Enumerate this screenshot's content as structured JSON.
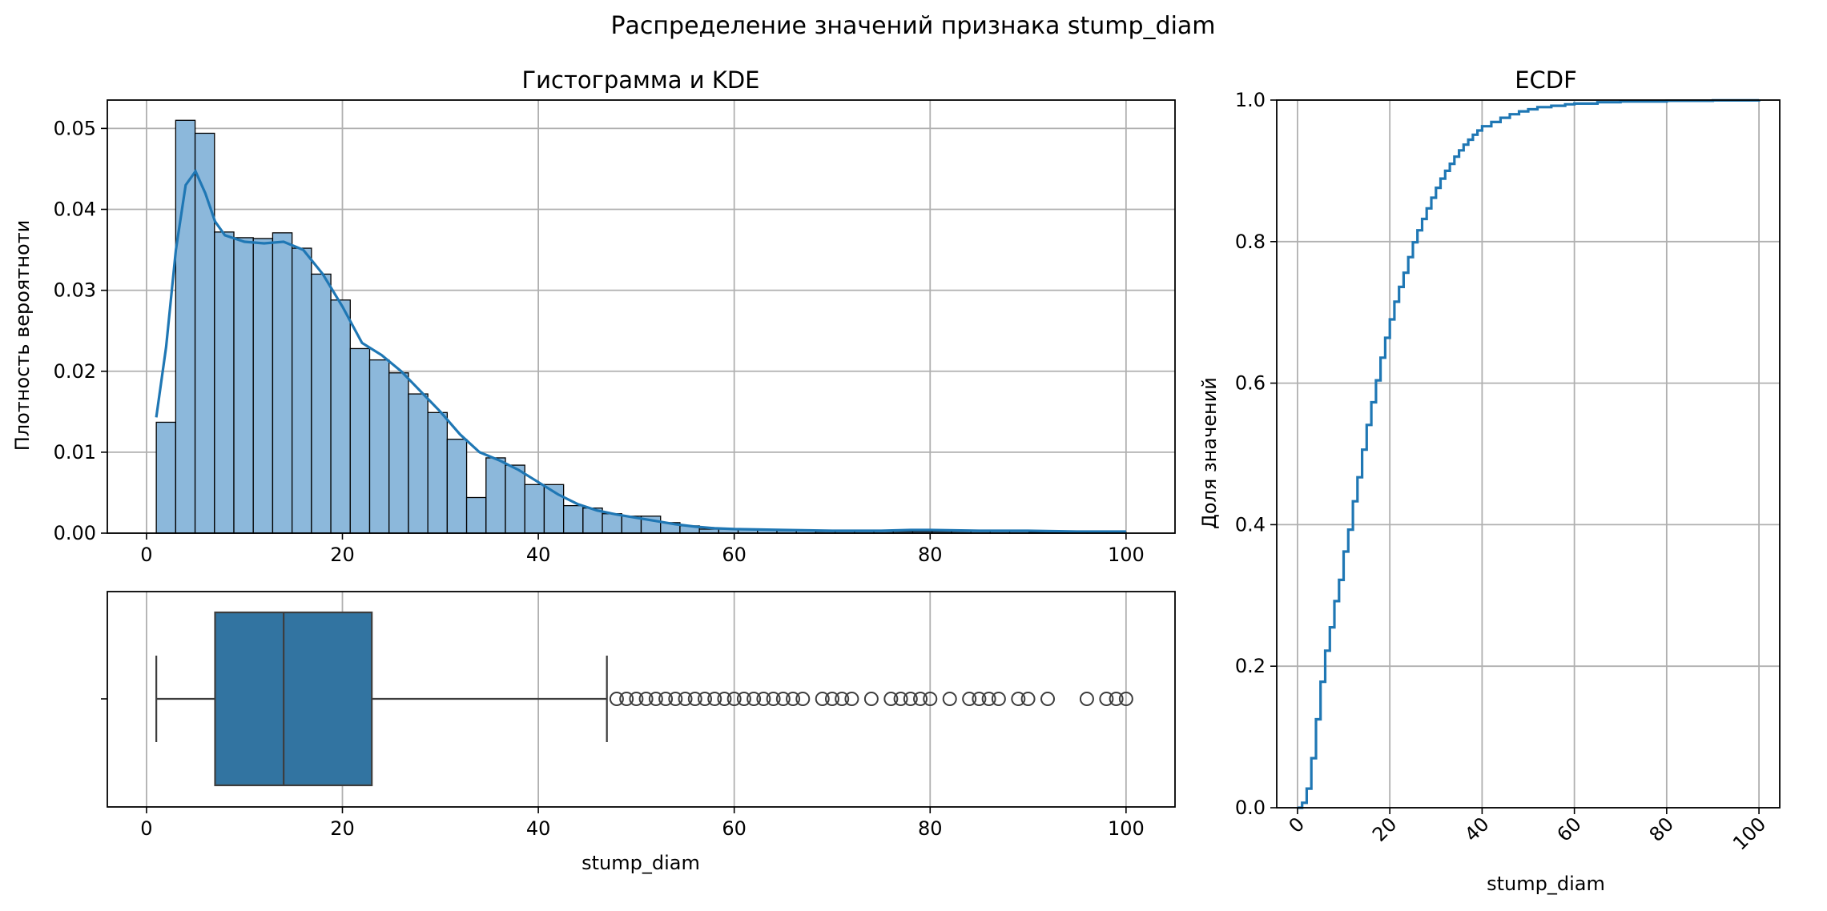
{
  "figure": {
    "title": "Распределение значений признака stump_diam",
    "accent_color": "#1f77b4",
    "box_color": "#3274a1",
    "hist_fill": "#8cb8db",
    "grid_color": "#b0b0b0"
  },
  "chart_data": [
    {
      "type": "bar",
      "subtype": "histogram_with_kde",
      "title": "Гистограмма и KDE",
      "xlabel": "",
      "ylabel": "Плотность вероятноти",
      "xlim": [
        -4,
        105
      ],
      "ylim": [
        0,
        0.0535
      ],
      "xticks": [
        0,
        20,
        40,
        60,
        80,
        100
      ],
      "yticks": [
        0.0,
        0.01,
        0.02,
        0.03,
        0.04,
        0.05
      ],
      "ytick_labels": [
        "0.00",
        "0.01",
        "0.02",
        "0.03",
        "0.04",
        "0.05"
      ],
      "grid": true,
      "bins": {
        "start": 1,
        "width": 1.98,
        "values": [
          0.0137,
          0.051,
          0.0494,
          0.0372,
          0.0365,
          0.0364,
          0.0371,
          0.0352,
          0.032,
          0.0288,
          0.0228,
          0.0214,
          0.0198,
          0.0172,
          0.0149,
          0.0116,
          0.0044,
          0.0093,
          0.0084,
          0.006,
          0.006,
          0.0034,
          0.0031,
          0.0024,
          0.0021,
          0.0021,
          0.0013,
          0.0009,
          0.0005,
          0.0005,
          0.0005,
          0.0004,
          0.0003,
          0.0003,
          0.0002,
          0.0002,
          0.0002,
          0.0002,
          0.0002,
          0.0002,
          0.0002,
          0.0002,
          0.0002,
          0.0002,
          0.0002,
          0.0001,
          0.0001,
          0.0001,
          0.0001,
          0.0001
        ]
      },
      "kde": {
        "x": [
          1,
          2,
          3,
          4,
          5,
          6,
          7,
          8,
          10,
          12,
          14,
          16,
          18,
          20,
          22,
          24,
          26,
          28,
          30,
          32,
          34,
          36,
          38,
          40,
          42,
          44,
          46,
          48,
          50,
          52,
          54,
          56,
          58,
          60,
          65,
          70,
          75,
          78,
          80,
          85,
          90,
          95,
          100
        ],
        "y": [
          0.0143,
          0.023,
          0.035,
          0.043,
          0.0447,
          0.042,
          0.0385,
          0.0368,
          0.036,
          0.0358,
          0.036,
          0.035,
          0.032,
          0.028,
          0.0235,
          0.022,
          0.02,
          0.0175,
          0.015,
          0.0122,
          0.01,
          0.009,
          0.0078,
          0.0063,
          0.0048,
          0.0036,
          0.0028,
          0.0023,
          0.0019,
          0.0015,
          0.0011,
          0.0008,
          0.0006,
          0.0005,
          0.0004,
          0.0003,
          0.0003,
          0.0004,
          0.0004,
          0.0003,
          0.0003,
          0.0002,
          0.0002
        ]
      }
    },
    {
      "type": "boxplot",
      "xlabel": "stump_diam",
      "xlim": [
        -4,
        105
      ],
      "xticks": [
        0,
        20,
        40,
        60,
        80,
        100
      ],
      "grid": true,
      "whisker_low": 1,
      "q1": 7,
      "median": 14,
      "q3": 23,
      "whisker_high": 47,
      "outliers": [
        48,
        49,
        50,
        51,
        52,
        53,
        54,
        55,
        56,
        57,
        58,
        59,
        60,
        61,
        62,
        63,
        64,
        65,
        66,
        67,
        69,
        70,
        71,
        72,
        74,
        76,
        77,
        78,
        79,
        80,
        82,
        84,
        85,
        86,
        87,
        89,
        90,
        92,
        96,
        98,
        99,
        100
      ]
    },
    {
      "type": "line",
      "subtype": "ecdf",
      "title": "ECDF",
      "xlabel": "stump_diam",
      "ylabel": "Доля значений",
      "xlim": [
        -4.5,
        104.5
      ],
      "ylim": [
        0,
        1
      ],
      "xticks": [
        0,
        20,
        40,
        60,
        80,
        100
      ],
      "yticks": [
        0.0,
        0.2,
        0.4,
        0.6,
        0.8,
        1.0
      ],
      "ytick_labels": [
        "0.0",
        "0.2",
        "0.4",
        "0.6",
        "0.8",
        "1.0"
      ],
      "xtick_rotation": 45,
      "grid": true,
      "x": [
        0,
        1,
        2,
        3,
        4,
        5,
        6,
        7,
        8,
        9,
        10,
        11,
        12,
        13,
        14,
        15,
        16,
        17,
        18,
        19,
        20,
        21,
        22,
        23,
        24,
        25,
        26,
        27,
        28,
        29,
        30,
        31,
        32,
        33,
        34,
        35,
        36,
        37,
        38,
        39,
        40,
        42,
        44,
        46,
        48,
        50,
        52,
        55,
        58,
        60,
        65,
        70,
        80,
        90,
        100
      ],
      "y": [
        0.0,
        0.007,
        0.027,
        0.07,
        0.125,
        0.178,
        0.222,
        0.255,
        0.292,
        0.322,
        0.362,
        0.393,
        0.433,
        0.467,
        0.506,
        0.541,
        0.573,
        0.604,
        0.636,
        0.664,
        0.69,
        0.715,
        0.736,
        0.756,
        0.778,
        0.799,
        0.816,
        0.832,
        0.847,
        0.862,
        0.876,
        0.889,
        0.9,
        0.91,
        0.92,
        0.929,
        0.937,
        0.944,
        0.951,
        0.957,
        0.963,
        0.969,
        0.975,
        0.98,
        0.984,
        0.987,
        0.99,
        0.992,
        0.994,
        0.995,
        0.997,
        0.998,
        0.999,
        0.9995,
        1.0
      ]
    }
  ]
}
